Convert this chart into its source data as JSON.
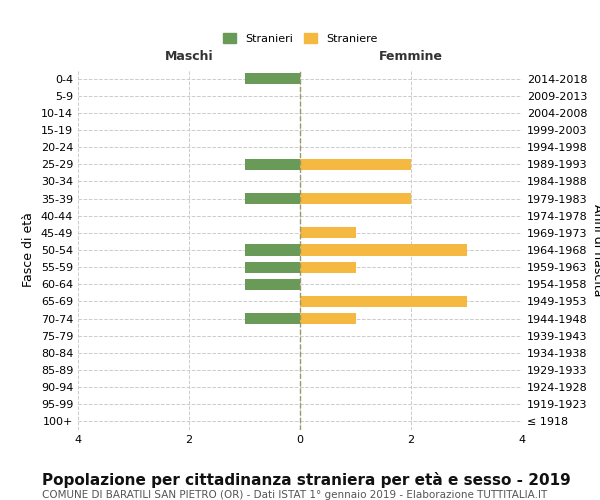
{
  "age_groups": [
    "0-4",
    "5-9",
    "10-14",
    "15-19",
    "20-24",
    "25-29",
    "30-34",
    "35-39",
    "40-44",
    "45-49",
    "50-54",
    "55-59",
    "60-64",
    "65-69",
    "70-74",
    "75-79",
    "80-84",
    "85-89",
    "90-94",
    "95-99",
    "100+"
  ],
  "birth_years": [
    "2014-2018",
    "2009-2013",
    "2004-2008",
    "1999-2003",
    "1994-1998",
    "1989-1993",
    "1984-1988",
    "1979-1983",
    "1974-1978",
    "1969-1973",
    "1964-1968",
    "1959-1963",
    "1954-1958",
    "1949-1953",
    "1944-1948",
    "1939-1943",
    "1934-1938",
    "1929-1933",
    "1924-1928",
    "1919-1923",
    "≤ 1918"
  ],
  "males": [
    1,
    0,
    0,
    0,
    0,
    1,
    0,
    1,
    0,
    0,
    1,
    1,
    1,
    0,
    1,
    0,
    0,
    0,
    0,
    0,
    0
  ],
  "females": [
    0,
    0,
    0,
    0,
    0,
    2,
    0,
    2,
    0,
    1,
    3,
    1,
    0,
    3,
    1,
    0,
    0,
    0,
    0,
    0,
    0
  ],
  "color_male": "#6a9a58",
  "color_female": "#f5b942",
  "xlim": 4,
  "title": "Popolazione per cittadinanza straniera per età e sesso - 2019",
  "subtitle": "COMUNE DI BARATILI SAN PIETRO (OR) - Dati ISTAT 1° gennaio 2019 - Elaborazione TUTTITALIA.IT",
  "ylabel_left": "Fasce di età",
  "ylabel_right": "Anni di nascita",
  "legend_male": "Stranieri",
  "legend_female": "Straniere",
  "col_header_left": "Maschi",
  "col_header_right": "Femmine",
  "bg_color": "#ffffff",
  "grid_color": "#cccccc",
  "title_fontsize": 11,
  "subtitle_fontsize": 7.5,
  "tick_fontsize": 8,
  "label_fontsize": 9
}
